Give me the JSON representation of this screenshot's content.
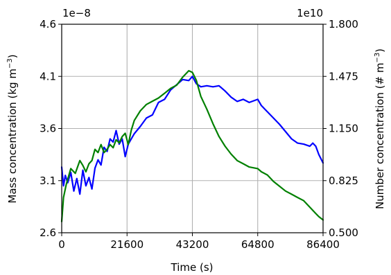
{
  "chart_data": {
    "type": "line",
    "xlabel": "Time (s)",
    "xlim": [
      0,
      86400
    ],
    "xticks": [
      0,
      21600,
      43200,
      64800,
      86400
    ],
    "xtick_labels": [
      "0",
      "21600",
      "43200",
      "64800",
      "86400"
    ],
    "grid": true,
    "left_axis": {
      "label": "Mass concentration (kg m",
      "label_sup": "−3",
      "label_end": ")",
      "color": "#0000ff",
      "scale_label": "1e−8",
      "ylim": [
        2.6,
        4.6
      ],
      "ticks": [
        2.6,
        3.1,
        3.6,
        4.1,
        4.6
      ],
      "tick_labels": [
        "2.6",
        "3.1",
        "3.6",
        "4.1",
        "4.6"
      ]
    },
    "right_axis": {
      "label": "Number concentration (# m",
      "label_sup": "−3",
      "label_end": ")",
      "color": "#008000",
      "scale_label": "1e10",
      "ylim": [
        0.5,
        1.8
      ],
      "ticks": [
        0.5,
        0.825,
        1.15,
        1.475,
        1.8
      ],
      "tick_labels": [
        "0.500",
        "0.825",
        "1.150",
        "1.475",
        "1.800"
      ]
    },
    "series": [
      {
        "axis": "left",
        "color": "#0000ff",
        "x": [
          0,
          600,
          1200,
          2000,
          3000,
          4000,
          5000,
          6000,
          7000,
          8000,
          9000,
          10000,
          11000,
          12000,
          13000,
          14000,
          15000,
          16000,
          17000,
          18000,
          19000,
          20000,
          21000,
          22000,
          24000,
          26000,
          28000,
          30000,
          32000,
          34000,
          36000,
          38000,
          40000,
          42000,
          43200,
          44500,
          46000,
          48000,
          50000,
          52000,
          54000,
          56000,
          58000,
          60000,
          62000,
          64800,
          66000,
          68000,
          70000,
          72000,
          74000,
          76000,
          78000,
          80000,
          82000,
          83000,
          84000,
          85000,
          86400
        ],
        "y": [
          3.23,
          3.05,
          3.15,
          3.08,
          3.18,
          3.0,
          3.12,
          2.97,
          3.2,
          3.05,
          3.13,
          3.02,
          3.22,
          3.3,
          3.25,
          3.42,
          3.38,
          3.5,
          3.47,
          3.58,
          3.45,
          3.5,
          3.33,
          3.45,
          3.55,
          3.62,
          3.7,
          3.73,
          3.85,
          3.88,
          3.97,
          4.02,
          4.07,
          4.06,
          4.1,
          4.03,
          4.0,
          4.01,
          4.0,
          4.01,
          3.96,
          3.9,
          3.86,
          3.88,
          3.85,
          3.88,
          3.82,
          3.76,
          3.7,
          3.64,
          3.57,
          3.5,
          3.46,
          3.45,
          3.43,
          3.46,
          3.43,
          3.35,
          3.27
        ]
      },
      {
        "axis": "right",
        "color": "#008000",
        "x": [
          0,
          600,
          1500,
          3000,
          4500,
          6000,
          7000,
          8000,
          9000,
          10000,
          11000,
          12000,
          13000,
          14000,
          15000,
          16000,
          17000,
          18000,
          19000,
          20000,
          21000,
          22000,
          23000,
          24000,
          26000,
          28000,
          30000,
          32000,
          34000,
          36000,
          38000,
          40000,
          41000,
          42000,
          43200,
          44500,
          46000,
          48000,
          50000,
          52000,
          54000,
          56000,
          58000,
          60000,
          62000,
          64800,
          66000,
          68000,
          70000,
          72000,
          74000,
          76000,
          78000,
          80000,
          82000,
          84000,
          85000,
          86400
        ],
        "y": [
          0.57,
          0.72,
          0.8,
          0.9,
          0.87,
          0.95,
          0.92,
          0.88,
          0.93,
          0.95,
          1.02,
          1.0,
          1.05,
          1.0,
          1.02,
          1.05,
          1.03,
          1.08,
          1.06,
          1.1,
          1.12,
          1.05,
          1.14,
          1.2,
          1.26,
          1.3,
          1.32,
          1.34,
          1.37,
          1.4,
          1.42,
          1.47,
          1.49,
          1.51,
          1.5,
          1.45,
          1.35,
          1.27,
          1.18,
          1.1,
          1.04,
          0.99,
          0.95,
          0.93,
          0.91,
          0.9,
          0.88,
          0.86,
          0.82,
          0.79,
          0.76,
          0.74,
          0.72,
          0.7,
          0.66,
          0.62,
          0.6,
          0.58
        ]
      }
    ]
  }
}
